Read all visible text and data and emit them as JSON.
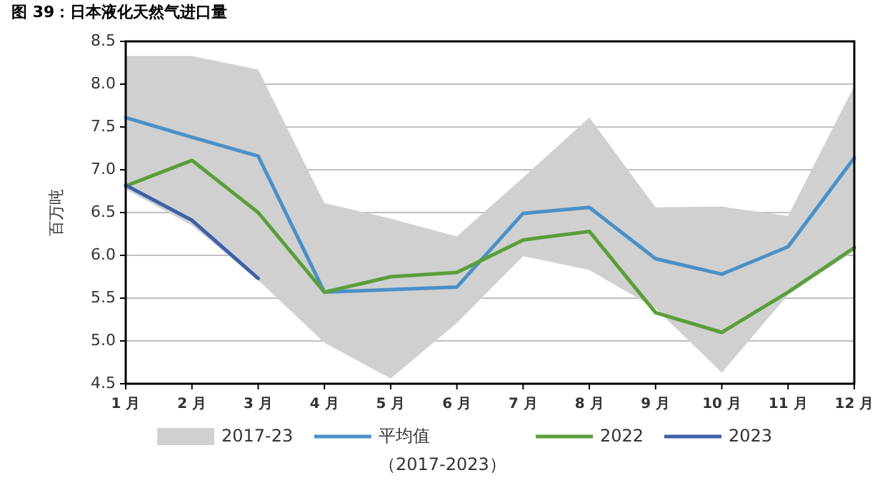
{
  "chart_data": {
    "type": "line",
    "title": "图 39：日本液化天然气进口量",
    "ylabel": "百万吨",
    "categories": [
      "1 月",
      "2 月",
      "3 月",
      "4 月",
      "5 月",
      "6 月",
      "7 月",
      "8 月",
      "9 月",
      "10 月",
      "11 月",
      "12 月"
    ],
    "ylim": [
      4.5,
      8.5
    ],
    "yticks": [
      {
        "value": 4.5,
        "label": "4.5"
      },
      {
        "value": 5,
        "label": "5.0"
      },
      {
        "value": 5.5,
        "label": "5.5"
      },
      {
        "value": 6,
        "label": "6.0"
      },
      {
        "value": 6.5,
        "label": "6.5"
      },
      {
        "value": 7,
        "label": "7.0"
      },
      {
        "value": 7.5,
        "label": "7.5"
      },
      {
        "value": 8,
        "label": "8.0"
      },
      {
        "value": 8.5,
        "label": "8.5"
      }
    ],
    "grid": "y",
    "legend": "bottom",
    "series": [
      {
        "name": "2017-23",
        "type": "area",
        "color": "#d0d0d0",
        "lower": [
          6.77,
          6.35,
          5.71,
          4.98,
          4.56,
          5.21,
          5.99,
          5.83,
          5.38,
          4.63,
          5.54,
          6.05
        ],
        "upper": [
          8.33,
          8.33,
          8.17,
          6.61,
          6.43,
          6.22,
          6.91,
          7.61,
          6.56,
          6.57,
          6.46,
          7.98
        ],
        "values": [
          null,
          null,
          null,
          null,
          null,
          null,
          null,
          null,
          null,
          null,
          null,
          null
        ]
      },
      {
        "name": "平均值（2017-2023）",
        "color": "#4a90c8",
        "values": [
          7.61,
          7.38,
          7.16,
          5.57,
          5.6,
          5.63,
          6.49,
          6.56,
          5.96,
          5.78,
          6.1,
          7.14
        ]
      },
      {
        "name": "2022",
        "color": "#5a9e3a",
        "values": [
          6.81,
          7.11,
          6.5,
          5.57,
          5.75,
          5.8,
          6.18,
          6.28,
          5.33,
          5.1,
          5.57,
          6.09
        ]
      },
      {
        "name": "2023",
        "color": "#3d5fa8",
        "values": [
          6.82,
          6.41,
          5.73,
          null,
          null,
          null,
          null,
          null,
          null,
          null,
          null,
          null
        ]
      }
    ]
  }
}
